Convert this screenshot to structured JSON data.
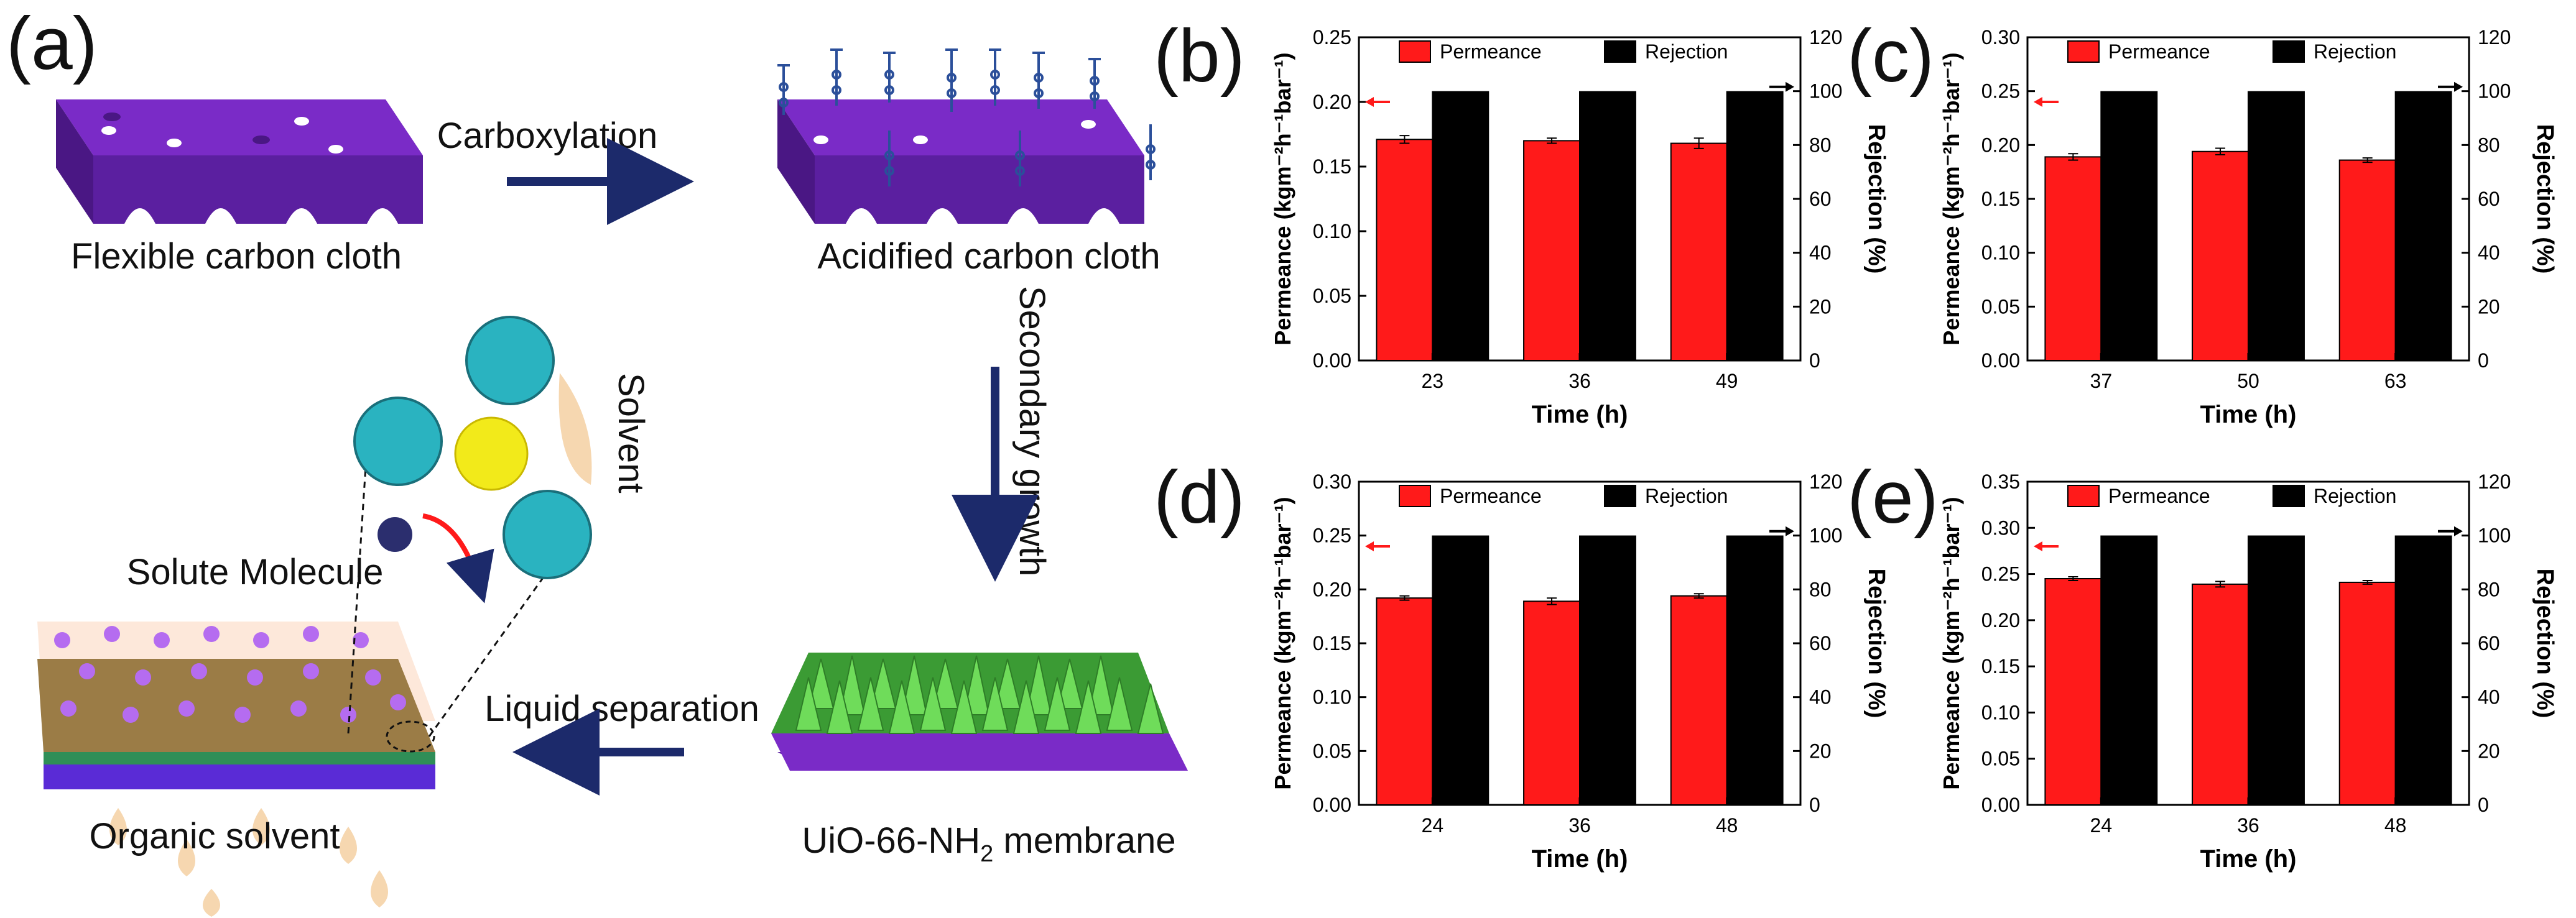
{
  "figure": {
    "panel_labels": [
      "(a)",
      "(b)",
      "(c)",
      "(d)",
      "(e)"
    ],
    "colors": {
      "cloth_top": "#7a2bc7",
      "cloth_side": "#5b1fa0",
      "arrow": "#1c2a6b",
      "permeance": "#ff1a1a",
      "rejection": "#000000",
      "crystal": "#5fcf4f",
      "solvent_drop": "#f6d7b0",
      "mof_cluster": "#2ab3c0",
      "solute": "#2b2e6e",
      "sphere": "#f2ea1a"
    }
  },
  "schematic": {
    "label_flexible_cloth": "Flexible carbon cloth",
    "label_acidified_cloth": "Acidified carbon cloth",
    "label_membrane_pre": "UiO-66-NH",
    "label_membrane_sub": "2",
    "label_membrane_post": " membrane",
    "label_organic_solvent": "Organic solvent",
    "step_carboxylation": "Carboxylation",
    "step_secondary_growth": "Secondary growth",
    "step_liquid_separation": "Liquid separation",
    "label_solvent": "Solvent",
    "label_solute": "Solute Molecule"
  },
  "chart_data": [
    {
      "panel": "(b)",
      "type": "bar",
      "categories": [
        "23",
        "36",
        "49"
      ],
      "xlabel": "Time (h)",
      "ylabel_left": "Permeance (kgm⁻²h⁻¹bar⁻¹)",
      "ylabel_right": "Rejection (%)",
      "ylim_left": [
        0,
        0.25
      ],
      "left_ticks": [
        "0.00",
        "0.05",
        "0.10",
        "0.15",
        "0.20",
        "0.25"
      ],
      "ylim_right": [
        0,
        120
      ],
      "right_ticks": [
        "0",
        "20",
        "40",
        "60",
        "80",
        "100",
        "120"
      ],
      "series": [
        {
          "name": "Permeance",
          "axis": "left",
          "values": [
            0.171,
            0.17,
            0.168
          ],
          "errors": [
            0.003,
            0.002,
            0.004
          ]
        },
        {
          "name": "Rejection",
          "axis": "right",
          "values": [
            99.8,
            99.8,
            99.8
          ]
        }
      ],
      "legend": [
        "Permeance",
        "Rejection"
      ]
    },
    {
      "panel": "(c)",
      "type": "bar",
      "categories": [
        "37",
        "50",
        "63"
      ],
      "xlabel": "Time (h)",
      "ylabel_left": "Permeance (kgm⁻²h⁻¹bar⁻¹)",
      "ylabel_right": "Rejection (%)",
      "ylim_left": [
        0,
        0.3
      ],
      "left_ticks": [
        "0.00",
        "0.05",
        "0.10",
        "0.15",
        "0.20",
        "0.25",
        "0.30"
      ],
      "ylim_right": [
        0,
        120
      ],
      "right_ticks": [
        "0",
        "20",
        "40",
        "60",
        "80",
        "100",
        "120"
      ],
      "series": [
        {
          "name": "Permeance",
          "axis": "left",
          "values": [
            0.189,
            0.194,
            0.186
          ],
          "errors": [
            0.003,
            0.003,
            0.002
          ]
        },
        {
          "name": "Rejection",
          "axis": "right",
          "values": [
            99.8,
            99.8,
            99.8
          ]
        }
      ],
      "legend": [
        "Permeance",
        "Rejection"
      ]
    },
    {
      "panel": "(d)",
      "type": "bar",
      "categories": [
        "24",
        "36",
        "48"
      ],
      "xlabel": "Time (h)",
      "ylabel_left": "Permeance (kgm⁻²h⁻¹bar⁻¹)",
      "ylabel_right": "Rejection (%)",
      "ylim_left": [
        0,
        0.3
      ],
      "left_ticks": [
        "0.00",
        "0.05",
        "0.10",
        "0.15",
        "0.20",
        "0.25",
        "0.30"
      ],
      "ylim_right": [
        0,
        120
      ],
      "right_ticks": [
        "0",
        "20",
        "40",
        "60",
        "80",
        "100",
        "120"
      ],
      "series": [
        {
          "name": "Permeance",
          "axis": "left",
          "values": [
            0.192,
            0.189,
            0.194
          ],
          "errors": [
            0.002,
            0.003,
            0.002
          ]
        },
        {
          "name": "Rejection",
          "axis": "right",
          "values": [
            99.8,
            99.8,
            99.8
          ]
        }
      ],
      "legend": [
        "Permeance",
        "Rejection"
      ]
    },
    {
      "panel": "(e)",
      "type": "bar",
      "categories": [
        "24",
        "36",
        "48"
      ],
      "xlabel": "Time (h)",
      "ylabel_left": "Permeance (kgm⁻²h⁻¹bar⁻¹)",
      "ylabel_right": "Rejection (%)",
      "ylim_left": [
        0,
        0.35
      ],
      "left_ticks": [
        "0.00",
        "0.05",
        "0.10",
        "0.15",
        "0.20",
        "0.25",
        "0.30",
        "0.35"
      ],
      "ylim_right": [
        0,
        120
      ],
      "right_ticks": [
        "0",
        "20",
        "40",
        "60",
        "80",
        "100",
        "120"
      ],
      "series": [
        {
          "name": "Permeance",
          "axis": "left",
          "values": [
            0.245,
            0.239,
            0.241
          ],
          "errors": [
            0.002,
            0.003,
            0.002
          ]
        },
        {
          "name": "Rejection",
          "axis": "right",
          "values": [
            99.8,
            99.8,
            99.8
          ]
        }
      ],
      "legend": [
        "Permeance",
        "Rejection"
      ]
    }
  ]
}
